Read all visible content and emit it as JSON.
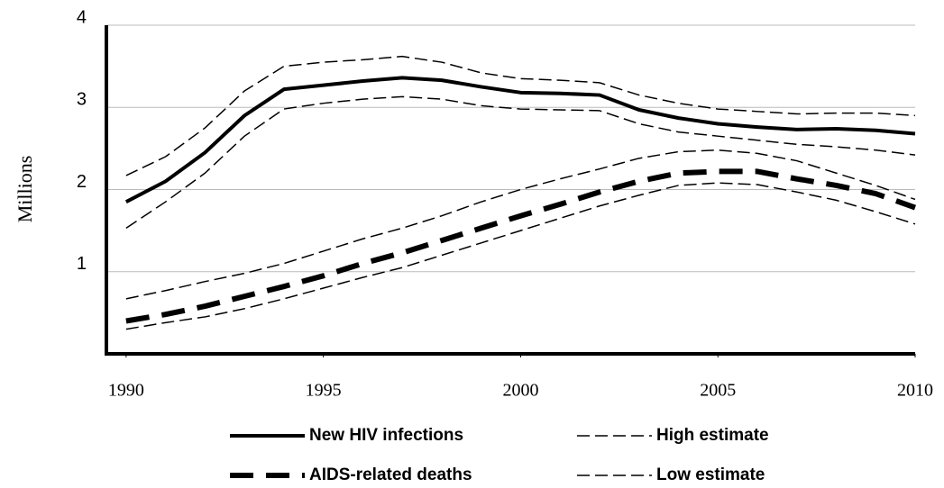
{
  "chart_data": {
    "type": "line",
    "y_label": "Millions",
    "x": [
      1990,
      1991,
      1992,
      1993,
      1994,
      1995,
      1996,
      1997,
      1998,
      1999,
      2000,
      2001,
      2002,
      2003,
      2004,
      2005,
      2006,
      2007,
      2008,
      2009,
      2010
    ],
    "xlim": [
      1989.5,
      2010
    ],
    "xticks": [
      1990,
      1995,
      2000,
      2005,
      2010
    ],
    "ylim": [
      0,
      4
    ],
    "yticks": [
      1,
      2,
      3,
      4
    ],
    "grid": true,
    "series": [
      {
        "name": "New HIV infections",
        "color": "#000000",
        "style": "solid",
        "values": [
          1.85,
          2.1,
          2.45,
          2.9,
          3.22,
          3.27,
          3.32,
          3.36,
          3.33,
          3.25,
          3.18,
          3.17,
          3.15,
          2.97,
          2.87,
          2.8,
          2.76,
          2.73,
          2.74,
          2.72,
          2.68
        ]
      },
      {
        "name": "High estimate",
        "color": "#000000",
        "style": "dashed",
        "values": [
          2.17,
          2.4,
          2.75,
          3.2,
          3.5,
          3.55,
          3.58,
          3.62,
          3.55,
          3.42,
          3.35,
          3.33,
          3.3,
          3.15,
          3.05,
          2.98,
          2.95,
          2.92,
          2.93,
          2.93,
          2.9
        ]
      },
      {
        "name": "AIDS-related deaths",
        "color": "#000000",
        "style": "thick-dashed",
        "values": [
          0.4,
          0.48,
          0.58,
          0.7,
          0.82,
          0.95,
          1.1,
          1.23,
          1.38,
          1.53,
          1.68,
          1.82,
          1.97,
          2.1,
          2.2,
          2.22,
          2.22,
          2.13,
          2.05,
          1.95,
          1.78
        ]
      },
      {
        "name": "Low estimate",
        "color": "#000000",
        "style": "dashed",
        "values": [
          1.53,
          1.85,
          2.2,
          2.65,
          2.98,
          3.05,
          3.1,
          3.13,
          3.1,
          3.02,
          2.98,
          2.97,
          2.96,
          2.8,
          2.7,
          2.65,
          2.6,
          2.55,
          2.52,
          2.48,
          2.42
        ]
      },
      {
        "name": null,
        "color": "#000000",
        "style": "dashed",
        "values": [
          0.67,
          0.77,
          0.88,
          0.98,
          1.1,
          1.25,
          1.4,
          1.53,
          1.68,
          1.85,
          2.0,
          2.13,
          2.25,
          2.38,
          2.46,
          2.48,
          2.44,
          2.35,
          2.2,
          2.05,
          1.88
        ]
      },
      {
        "name": null,
        "color": "#000000",
        "style": "dashed",
        "values": [
          0.3,
          0.38,
          0.45,
          0.55,
          0.67,
          0.8,
          0.93,
          1.05,
          1.2,
          1.35,
          1.5,
          1.65,
          1.8,
          1.93,
          2.05,
          2.08,
          2.06,
          1.97,
          1.87,
          1.73,
          1.58
        ]
      }
    ]
  }
}
